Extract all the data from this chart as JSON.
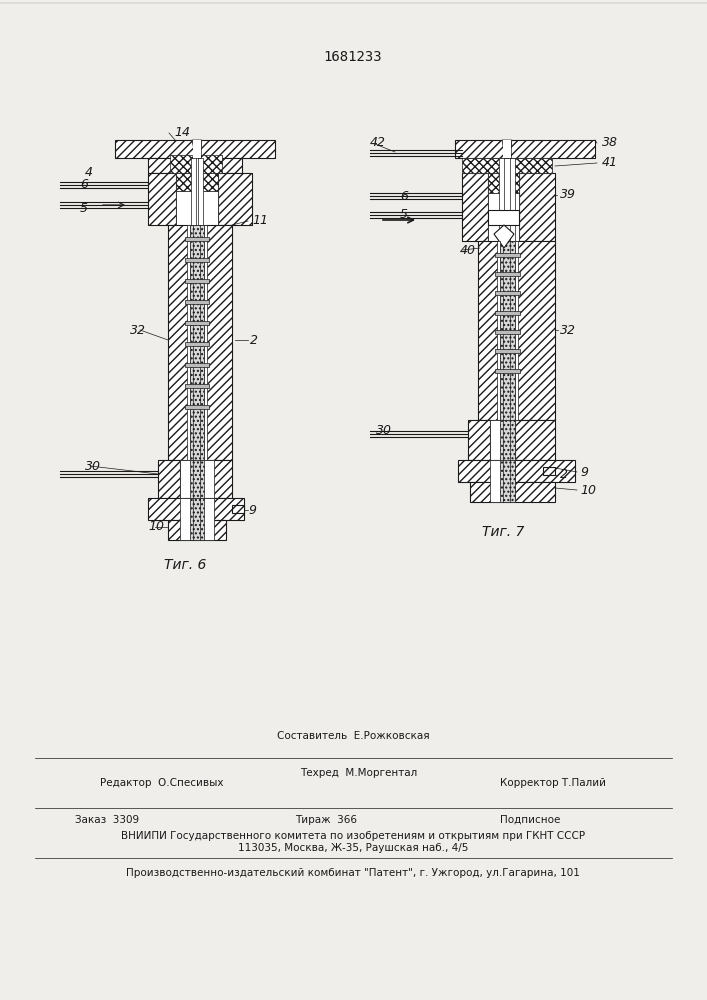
{
  "patent_number": "1681233",
  "fig6_label": "Τиг. 6",
  "fig7_label": "Τиг. 7",
  "bg_color": "#f0eeeb",
  "line_color": "#1a1a1a",
  "footer_editor": "Редактор  О.Спесивых",
  "footer_composer": "Составитель  Е.Рожковская",
  "footer_techred": "Техред  М.Моргентал",
  "footer_corrector": "Корректор Т.Палий",
  "footer_zakaz": "Заказ  3309",
  "footer_tirazh": "Тираж  366",
  "footer_podp": "Подписное",
  "footer_vniipи": "ВНИИПИ Государственного комитета по изобретениям и открытиям при ГКНТ СССР",
  "footer_address": "113035, Москва, Ж-35, Раушская наб., 4/5",
  "footer_publisher": "Производственно-издательский комбинат \"Патент\", г. Ужгород, ул.Гагарина, 101"
}
